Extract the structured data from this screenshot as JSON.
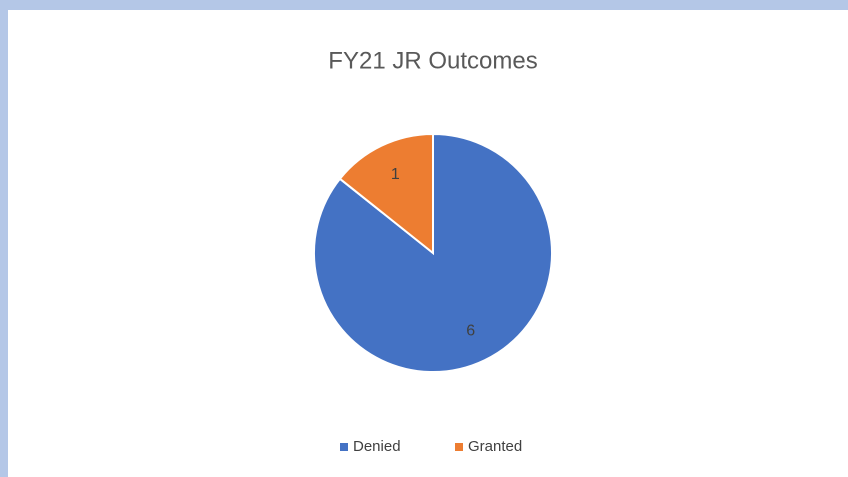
{
  "chart_data": {
    "type": "pie",
    "title": "FY21 JR Outcomes",
    "categories": [
      "Denied",
      "Granted"
    ],
    "values": [
      6,
      1
    ],
    "colors": [
      "#4472c4",
      "#ed7d31"
    ],
    "legend": "bottom"
  }
}
